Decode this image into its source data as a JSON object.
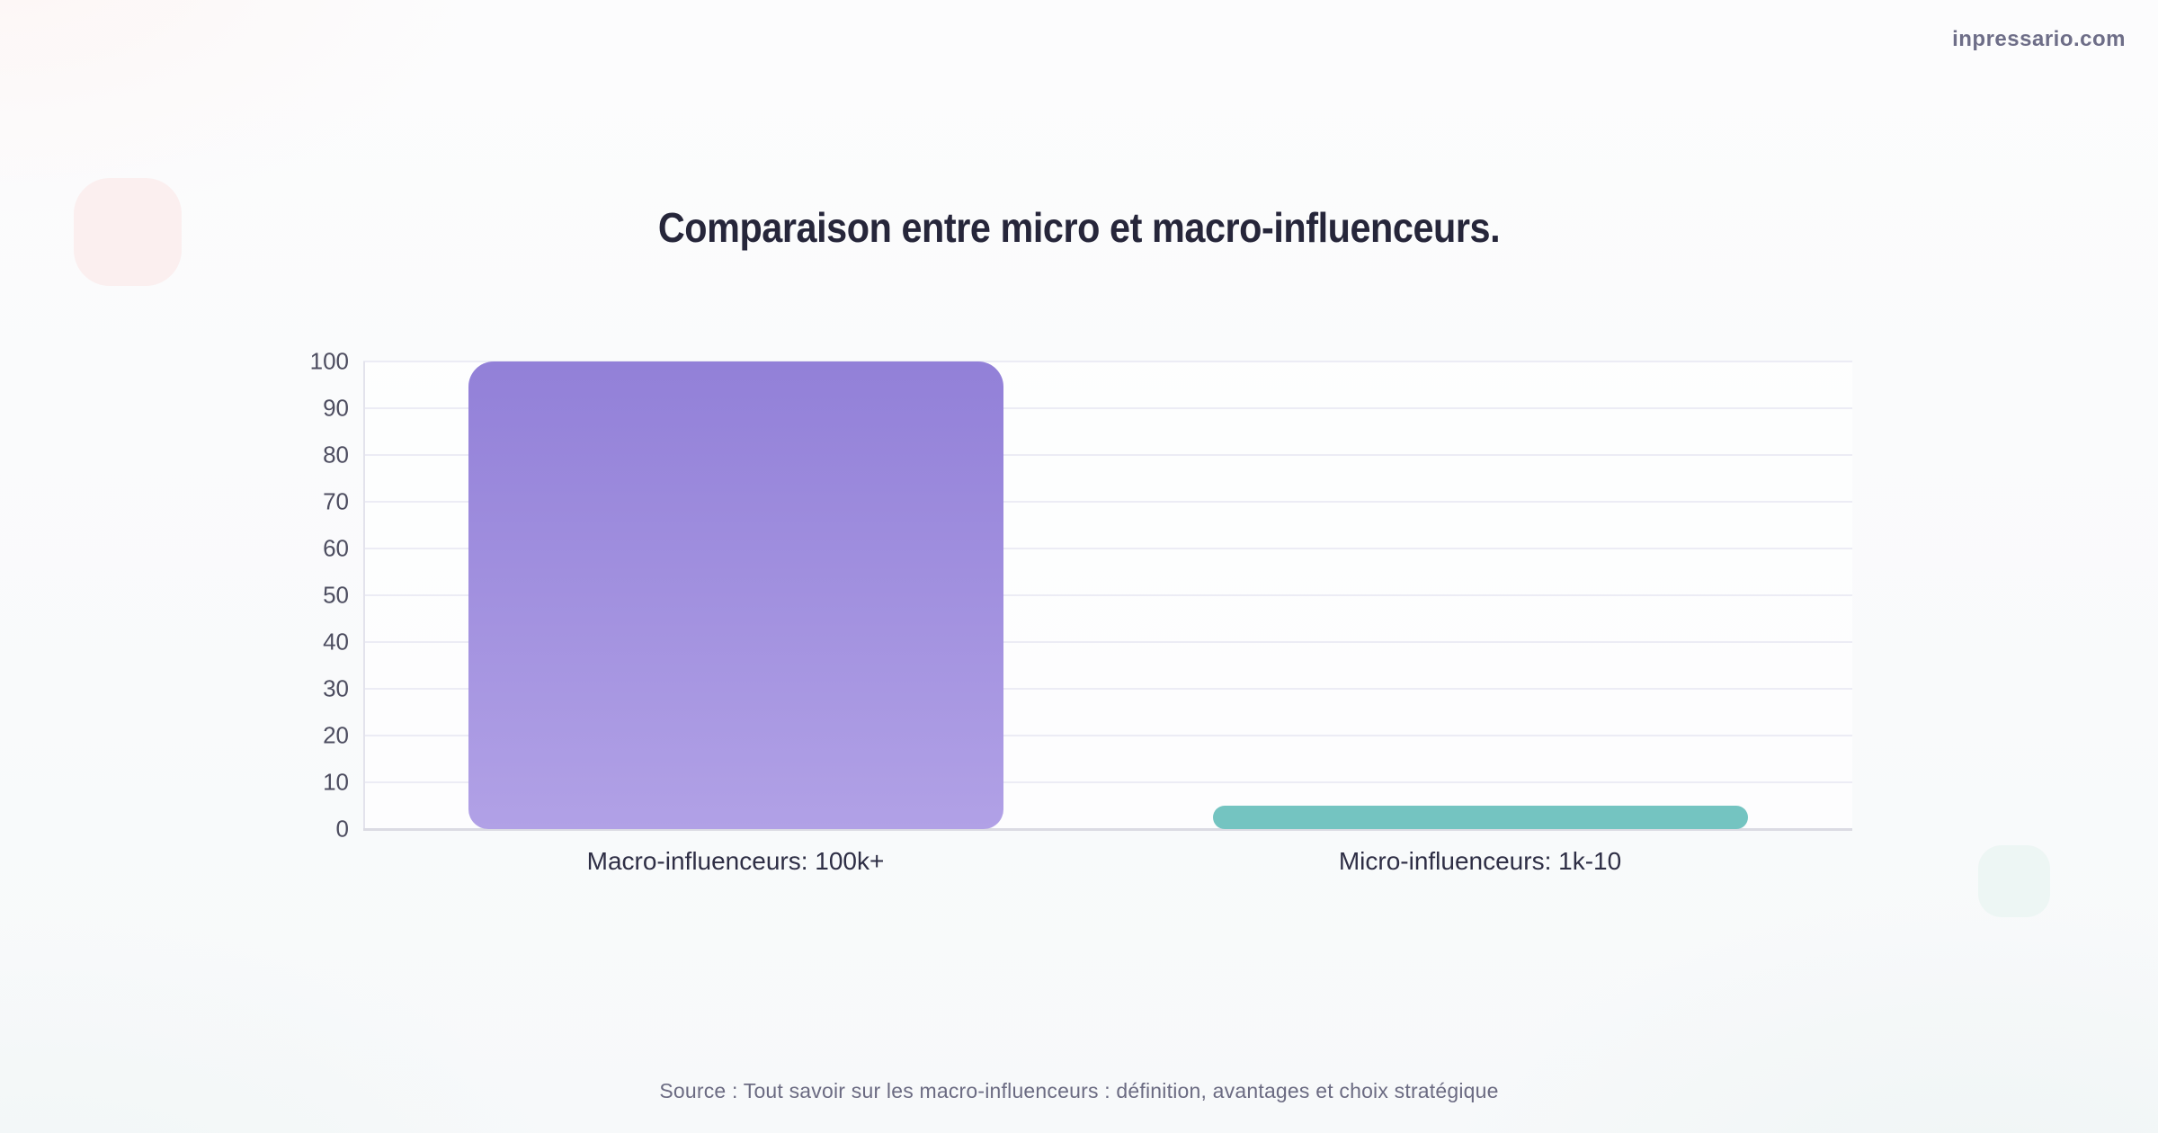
{
  "page": {
    "watermark": "inpressario.com",
    "source": "Source : Tout savoir sur les macro-influenceurs : définition, avantages et choix stratégique"
  },
  "chart_data": {
    "type": "bar",
    "title": "Comparaison entre micro et macro-influenceurs.",
    "categories": [
      "Macro-influenceurs: 100k+",
      "Micro-influenceurs: 1k-10"
    ],
    "values": [
      100,
      5
    ],
    "xlabel": "",
    "ylabel": "",
    "ylim": [
      0,
      100
    ],
    "yticks": [
      0,
      10,
      20,
      30,
      40,
      50,
      60,
      70,
      80,
      90,
      100
    ],
    "grid": true,
    "legend": false,
    "bar_colors": [
      {
        "top": "#9280d8",
        "bottom": "#b1a1e6"
      },
      {
        "top": "#74c4c1",
        "bottom": "#74c4c1"
      }
    ]
  },
  "colors": {
    "title": "#26263a",
    "tick_label": "#4d4d60",
    "category_label": "#2e2e45",
    "source": "#6b6b82",
    "watermark": "#6e6e88",
    "gridline": "#ececf5",
    "axis_line": "#e3e3ec",
    "baseline": "#dbdbe3",
    "deco_pink": "#fbefef",
    "deco_teal": "#edf6f4"
  }
}
